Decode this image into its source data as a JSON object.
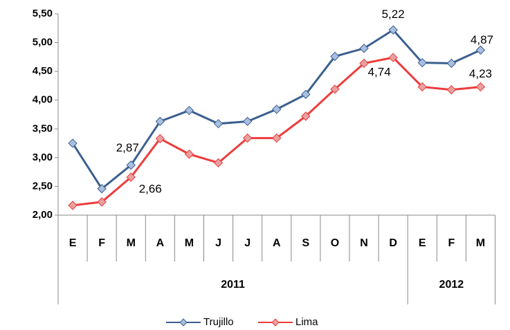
{
  "chart_data": {
    "type": "line",
    "categories": [
      "E",
      "F",
      "M",
      "A",
      "M",
      "J",
      "J",
      "A",
      "S",
      "O",
      "N",
      "D",
      "E",
      "F",
      "M"
    ],
    "groups": [
      {
        "label": "2011",
        "span": 12
      },
      {
        "label": "2012",
        "span": 3
      }
    ],
    "series": [
      {
        "name": "Trujillo",
        "color": "#3b5f8f",
        "marker_color": "#a9bfe0",
        "values": [
          3.25,
          2.46,
          2.87,
          3.63,
          3.82,
          3.59,
          3.63,
          3.84,
          4.1,
          4.76,
          4.9,
          5.22,
          4.65,
          4.64,
          4.87
        ],
        "value_labels": [
          null,
          null,
          "2,87",
          null,
          null,
          null,
          null,
          null,
          null,
          null,
          null,
          "5,22",
          null,
          null,
          "4,87"
        ]
      },
      {
        "name": "Lima",
        "color": "#ee3b3b",
        "marker_color": "#e8a0a0",
        "values": [
          2.17,
          2.23,
          2.66,
          3.33,
          3.06,
          2.91,
          3.34,
          3.34,
          3.72,
          4.19,
          4.64,
          4.74,
          4.23,
          4.18,
          4.23
        ],
        "value_labels": [
          null,
          null,
          "2,66",
          null,
          null,
          null,
          null,
          null,
          null,
          null,
          null,
          "4,74",
          null,
          null,
          "4,23"
        ]
      }
    ],
    "ylim": [
      2,
      5.5
    ],
    "yticks": [
      {
        "value": 2,
        "label": "2,00"
      },
      {
        "value": 2.5,
        "label": "2,50"
      },
      {
        "value": 3,
        "label": "3,00"
      },
      {
        "value": 3.5,
        "label": "3,50"
      },
      {
        "value": 4,
        "label": "4,00"
      },
      {
        "value": 4.5,
        "label": "4,50"
      },
      {
        "value": 5,
        "label": "5,00"
      },
      {
        "value": 5.5,
        "label": "5,50"
      }
    ],
    "legend": "bottom"
  }
}
